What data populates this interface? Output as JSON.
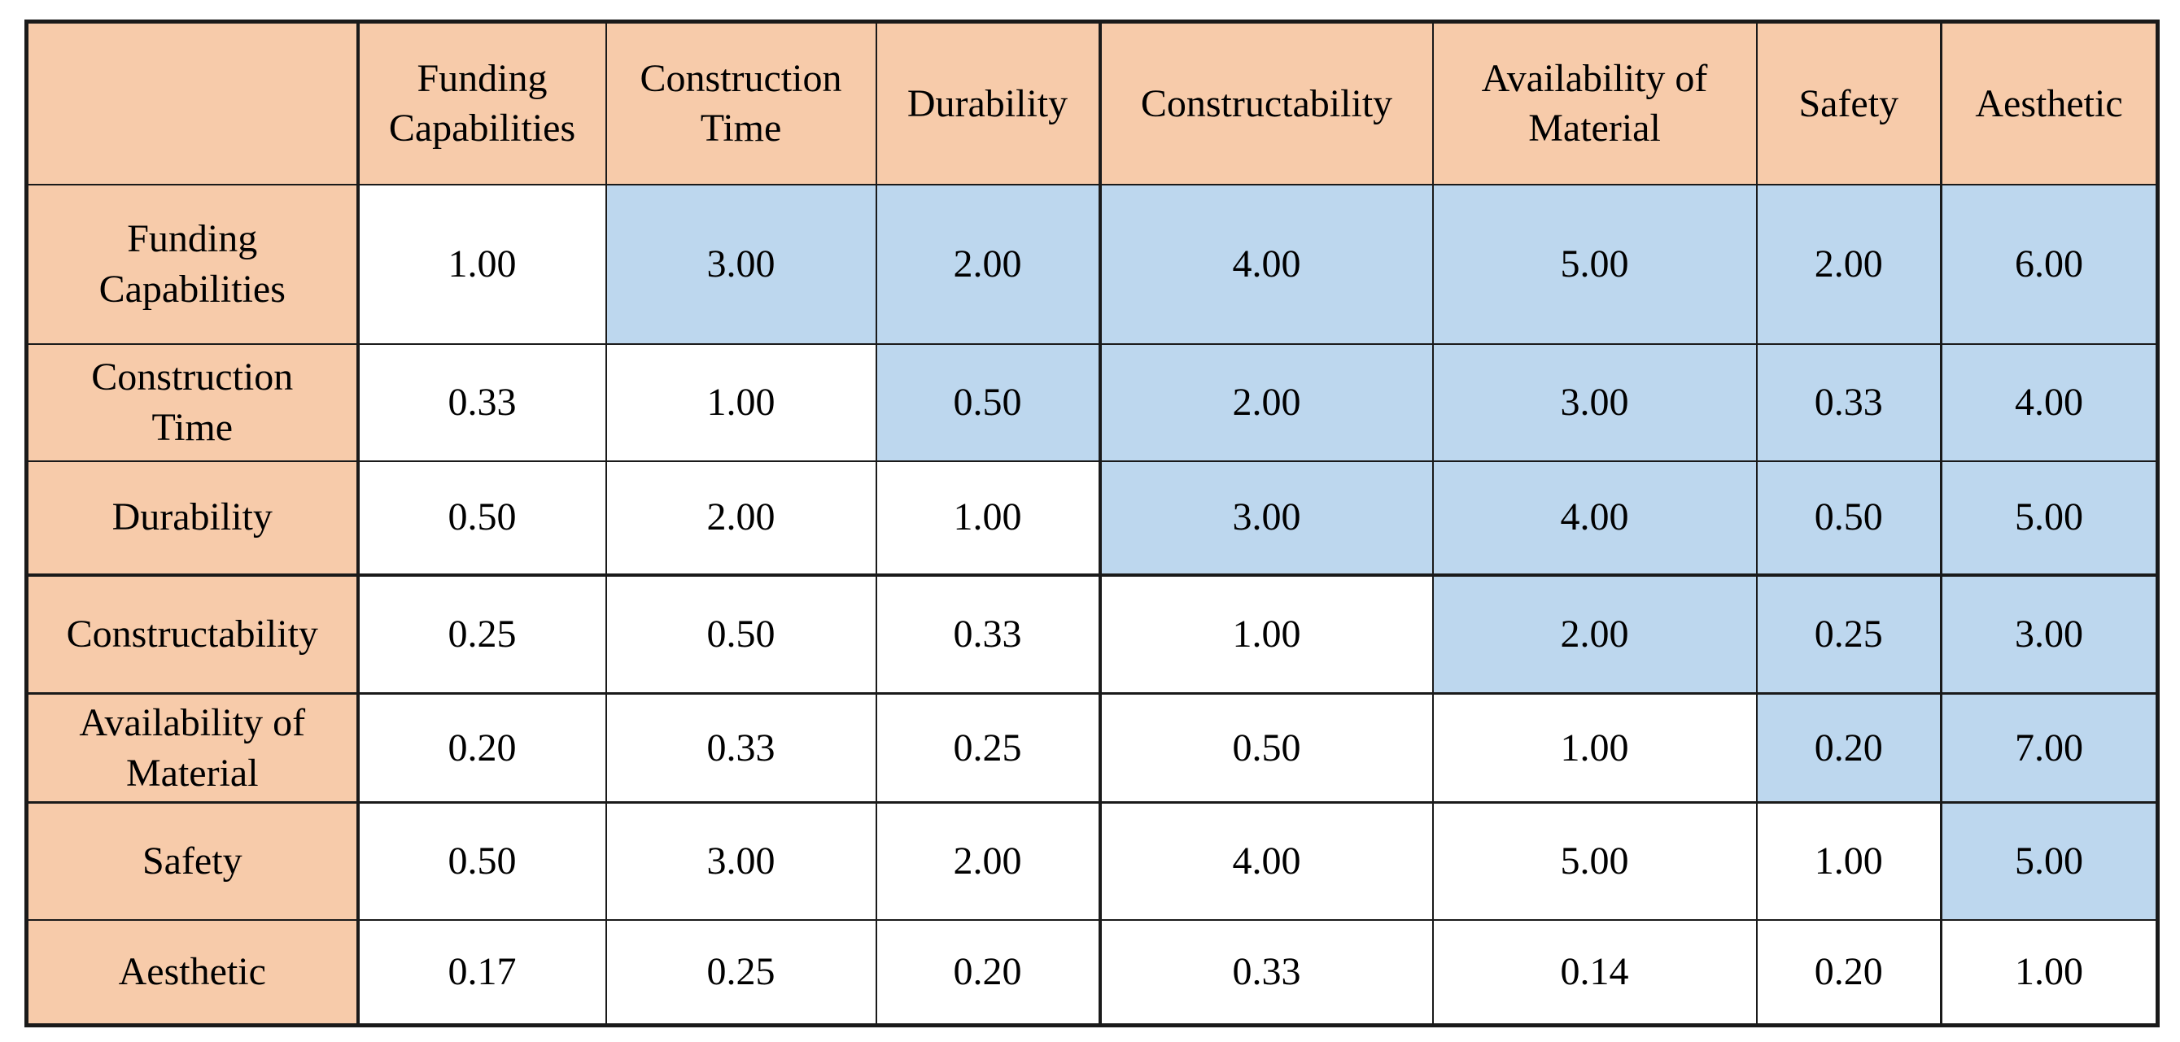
{
  "table": {
    "corner_label": "",
    "columns": [
      "Funding\nCapabilities",
      "Construction\nTime",
      "Durability",
      "Constructability",
      "Availability of\nMaterial",
      "Safety",
      "Aesthetic"
    ],
    "rows": [
      {
        "label": "Funding\nCapabilities",
        "values": [
          "1.00",
          "3.00",
          "2.00",
          "4.00",
          "5.00",
          "2.00",
          "6.00"
        ]
      },
      {
        "label": "Construction\nTime",
        "values": [
          "0.33",
          "1.00",
          "0.50",
          "2.00",
          "3.00",
          "0.33",
          "4.00"
        ]
      },
      {
        "label": "Durability",
        "values": [
          "0.50",
          "2.00",
          "1.00",
          "3.00",
          "4.00",
          "0.50",
          "5.00"
        ]
      },
      {
        "label": "Constructability",
        "values": [
          "0.25",
          "0.50",
          "0.33",
          "1.00",
          "2.00",
          "0.25",
          "3.00"
        ]
      },
      {
        "label": "Availability of\nMaterial",
        "values": [
          "0.20",
          "0.33",
          "0.25",
          "0.50",
          "1.00",
          "0.20",
          "7.00"
        ]
      },
      {
        "label": "Safety",
        "values": [
          "0.50",
          "3.00",
          "2.00",
          "4.00",
          "5.00",
          "1.00",
          "5.00"
        ]
      },
      {
        "label": "Aesthetic",
        "values": [
          "0.17",
          "0.25",
          "0.20",
          "0.33",
          "0.14",
          "0.20",
          "1.00"
        ]
      }
    ],
    "shading_rule": "cells above the diagonal are shaded blue; diagonal and below are white",
    "colors": {
      "header_fill": "#f7cbaa",
      "upper_triangle_fill": "#bdd7ee",
      "lower_triangle_fill": "#ffffff",
      "border": "#1a1a1a",
      "text": "#000000"
    }
  },
  "chart_data": {
    "type": "table",
    "columns": [
      "",
      "Funding Capabilities",
      "Construction Time",
      "Durability",
      "Constructability",
      "Availability of Material",
      "Safety",
      "Aesthetic"
    ],
    "rows": [
      [
        "Funding Capabilities",
        "1.00",
        "3.00",
        "2.00",
        "4.00",
        "5.00",
        "2.00",
        "6.00"
      ],
      [
        "Construction Time",
        "0.33",
        "1.00",
        "0.50",
        "2.00",
        "3.00",
        "0.33",
        "4.00"
      ],
      [
        "Durability",
        "0.50",
        "2.00",
        "1.00",
        "3.00",
        "4.00",
        "0.50",
        "5.00"
      ],
      [
        "Constructability",
        "0.25",
        "0.50",
        "0.33",
        "1.00",
        "2.00",
        "0.25",
        "3.00"
      ],
      [
        "Availability of Material",
        "0.20",
        "0.33",
        "0.25",
        "0.50",
        "1.00",
        "0.20",
        "7.00"
      ],
      [
        "Safety",
        "0.50",
        "3.00",
        "2.00",
        "4.00",
        "5.00",
        "1.00",
        "5.00"
      ],
      [
        "Aesthetic",
        "0.17",
        "0.25",
        "0.20",
        "0.33",
        "0.14",
        "0.20",
        "1.00"
      ]
    ]
  }
}
